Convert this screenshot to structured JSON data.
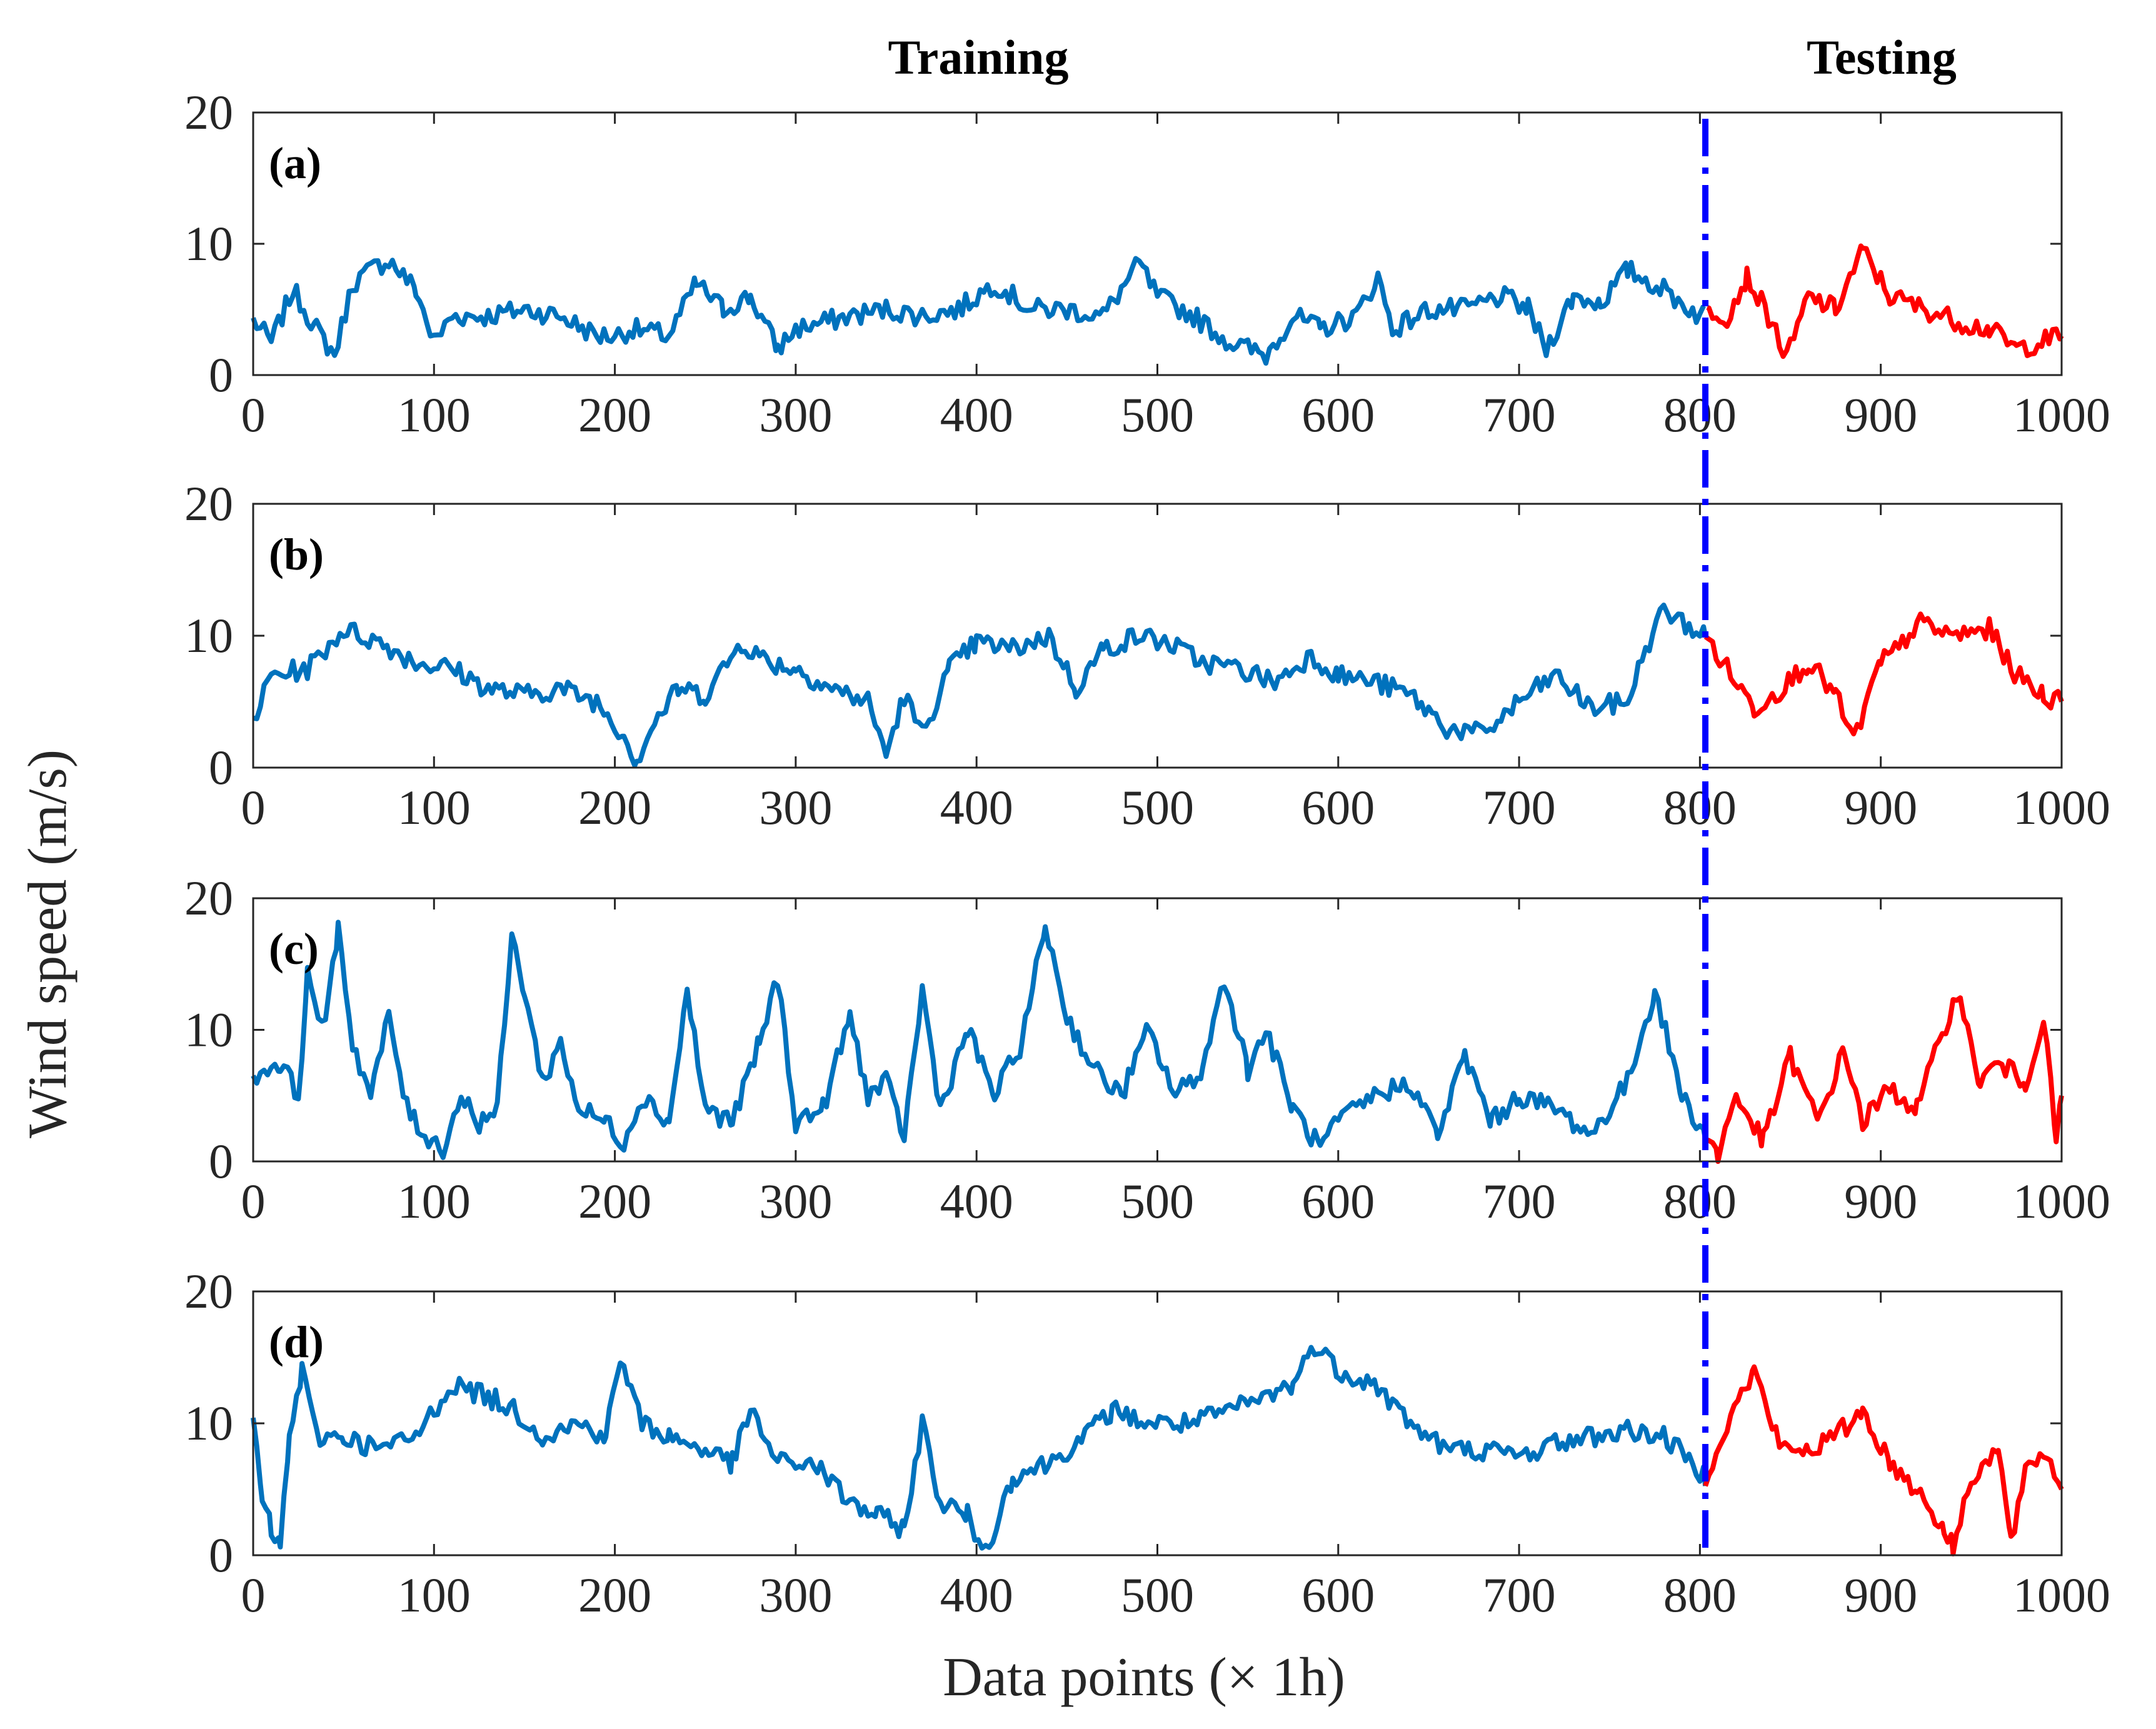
{
  "chart_data": {
    "type": "line",
    "section_labels": {
      "training": "Training",
      "testing": "Testing"
    },
    "xlabel": "Data points (× 1h)",
    "ylabel": "Wind speed (m/s)",
    "xlim": [
      0,
      1000
    ],
    "ylim": [
      0,
      20
    ],
    "xticks": [
      "0",
      "100",
      "200",
      "300",
      "400",
      "500",
      "600",
      "700",
      "800",
      "900",
      "1000"
    ],
    "yticks": [
      "0",
      "10",
      "20"
    ],
    "split_x": 803,
    "colors": {
      "training": "#0072BD",
      "testing": "#FF0000",
      "split": "#0000FF",
      "axis": "#262626"
    },
    "panels": [
      {
        "label": "(a)",
        "knots": [
          [
            0,
            4.2
          ],
          [
            10,
            2.5
          ],
          [
            22,
            6.5
          ],
          [
            35,
            3.5
          ],
          [
            45,
            1.5
          ],
          [
            55,
            7
          ],
          [
            65,
            8
          ],
          [
            75,
            8.8
          ],
          [
            90,
            6.5
          ],
          [
            100,
            2.5
          ],
          [
            110,
            4.5
          ],
          [
            130,
            4.5
          ],
          [
            150,
            5
          ],
          [
            170,
            4.5
          ],
          [
            190,
            3
          ],
          [
            200,
            3
          ],
          [
            210,
            3.5
          ],
          [
            230,
            3
          ],
          [
            245,
            7
          ],
          [
            260,
            5
          ],
          [
            275,
            6
          ],
          [
            290,
            2
          ],
          [
            300,
            3.5
          ],
          [
            330,
            4.5
          ],
          [
            350,
            5
          ],
          [
            370,
            4.5
          ],
          [
            390,
            5
          ],
          [
            410,
            7
          ],
          [
            430,
            5
          ],
          [
            450,
            5
          ],
          [
            470,
            4.5
          ],
          [
            490,
            8.5
          ],
          [
            500,
            6
          ],
          [
            520,
            4.5
          ],
          [
            540,
            2.5
          ],
          [
            560,
            1.5
          ],
          [
            575,
            4.5
          ],
          [
            590,
            3.5
          ],
          [
            610,
            4.5
          ],
          [
            622,
            7.5
          ],
          [
            630,
            3.5
          ],
          [
            650,
            5
          ],
          [
            670,
            5
          ],
          [
            690,
            6
          ],
          [
            705,
            5
          ],
          [
            715,
            2
          ],
          [
            730,
            6
          ],
          [
            745,
            5.5
          ],
          [
            760,
            8
          ],
          [
            780,
            6.5
          ],
          [
            800,
            4.5
          ],
          [
            805,
            5
          ],
          [
            815,
            4.5
          ],
          [
            826,
            7.5
          ],
          [
            840,
            4
          ],
          [
            848,
            1.2
          ],
          [
            860,
            6
          ],
          [
            875,
            5
          ],
          [
            890,
            9.5
          ],
          [
            905,
            6
          ],
          [
            925,
            5
          ],
          [
            945,
            4
          ],
          [
            960,
            3.5
          ],
          [
            975,
            2
          ],
          [
            1000,
            3
          ]
        ]
      },
      {
        "label": "(b)",
        "knots": [
          [
            0,
            3.5
          ],
          [
            10,
            7
          ],
          [
            30,
            7.5
          ],
          [
            50,
            10.5
          ],
          [
            70,
            9.5
          ],
          [
            90,
            8
          ],
          [
            110,
            7.5
          ],
          [
            130,
            6
          ],
          [
            150,
            5.5
          ],
          [
            170,
            6
          ],
          [
            190,
            5
          ],
          [
            205,
            2.5
          ],
          [
            212,
            0.5
          ],
          [
            220,
            3
          ],
          [
            235,
            6
          ],
          [
            250,
            5.5
          ],
          [
            270,
            9.5
          ],
          [
            285,
            8
          ],
          [
            300,
            7.5
          ],
          [
            320,
            6
          ],
          [
            340,
            5
          ],
          [
            350,
            1
          ],
          [
            360,
            5.5
          ],
          [
            370,
            2.5
          ],
          [
            385,
            7.5
          ],
          [
            400,
            9.5
          ],
          [
            420,
            9
          ],
          [
            440,
            10
          ],
          [
            455,
            6
          ],
          [
            470,
            9
          ],
          [
            490,
            10
          ],
          [
            505,
            9.5
          ],
          [
            525,
            8
          ],
          [
            545,
            7.5
          ],
          [
            565,
            6.5
          ],
          [
            585,
            8.5
          ],
          [
            600,
            7
          ],
          [
            620,
            6.5
          ],
          [
            640,
            5.5
          ],
          [
            660,
            3
          ],
          [
            680,
            2.5
          ],
          [
            700,
            5
          ],
          [
            720,
            7
          ],
          [
            740,
            4.5
          ],
          [
            760,
            5
          ],
          [
            770,
            9
          ],
          [
            780,
            12
          ],
          [
            790,
            11
          ],
          [
            803,
            10
          ],
          [
            815,
            7.5
          ],
          [
            830,
            4.5
          ],
          [
            845,
            6
          ],
          [
            860,
            8
          ],
          [
            875,
            5.5
          ],
          [
            885,
            2
          ],
          [
            900,
            8
          ],
          [
            910,
            9
          ],
          [
            920,
            11
          ],
          [
            940,
            10
          ],
          [
            960,
            10.5
          ],
          [
            975,
            7
          ],
          [
            990,
            5.5
          ],
          [
            1000,
            5
          ]
        ]
      },
      {
        "label": "(c)",
        "knots": [
          [
            0,
            6.5
          ],
          [
            15,
            7.5
          ],
          [
            25,
            5
          ],
          [
            30,
            14
          ],
          [
            40,
            10
          ],
          [
            47,
            18
          ],
          [
            55,
            9
          ],
          [
            65,
            5
          ],
          [
            75,
            11
          ],
          [
            85,
            4
          ],
          [
            95,
            2
          ],
          [
            105,
            1
          ],
          [
            115,
            5
          ],
          [
            125,
            3
          ],
          [
            135,
            4
          ],
          [
            143,
            17
          ],
          [
            150,
            13
          ],
          [
            160,
            6
          ],
          [
            170,
            9
          ],
          [
            180,
            4
          ],
          [
            195,
            3
          ],
          [
            205,
            1.5
          ],
          [
            215,
            5
          ],
          [
            230,
            3
          ],
          [
            240,
            13
          ],
          [
            250,
            4
          ],
          [
            265,
            3
          ],
          [
            280,
            9
          ],
          [
            290,
            14
          ],
          [
            300,
            3
          ],
          [
            315,
            4
          ],
          [
            330,
            11
          ],
          [
            340,
            5
          ],
          [
            350,
            6
          ],
          [
            360,
            2
          ],
          [
            370,
            13
          ],
          [
            380,
            4
          ],
          [
            395,
            10
          ],
          [
            410,
            5
          ],
          [
            425,
            9
          ],
          [
            438,
            18
          ],
          [
            450,
            11
          ],
          [
            465,
            7
          ],
          [
            480,
            5
          ],
          [
            495,
            10
          ],
          [
            510,
            5
          ],
          [
            525,
            7
          ],
          [
            537,
            14
          ],
          [
            550,
            7
          ],
          [
            560,
            10
          ],
          [
            575,
            4
          ],
          [
            590,
            1
          ],
          [
            600,
            3
          ],
          [
            620,
            5
          ],
          [
            640,
            6
          ],
          [
            655,
            2
          ],
          [
            670,
            8
          ],
          [
            685,
            3
          ],
          [
            700,
            5
          ],
          [
            720,
            4
          ],
          [
            740,
            2
          ],
          [
            760,
            6
          ],
          [
            775,
            13
          ],
          [
            790,
            5
          ],
          [
            803,
            2
          ],
          [
            810,
            0.5
          ],
          [
            820,
            5
          ],
          [
            835,
            1.5
          ],
          [
            850,
            8
          ],
          [
            865,
            3
          ],
          [
            880,
            8.5
          ],
          [
            890,
            3
          ],
          [
            905,
            5.5
          ],
          [
            920,
            4
          ],
          [
            930,
            8
          ],
          [
            942,
            13
          ],
          [
            955,
            6
          ],
          [
            965,
            7.5
          ],
          [
            980,
            6
          ],
          [
            990,
            11
          ],
          [
            997,
            1.5
          ],
          [
            1000,
            5
          ]
        ]
      },
      {
        "label": "(d)",
        "knots": [
          [
            0,
            10.5
          ],
          [
            5,
            4
          ],
          [
            10,
            2
          ],
          [
            15,
            0.5
          ],
          [
            20,
            9
          ],
          [
            27,
            14
          ],
          [
            35,
            9
          ],
          [
            50,
            9
          ],
          [
            70,
            8
          ],
          [
            90,
            9
          ],
          [
            110,
            13
          ],
          [
            130,
            12
          ],
          [
            145,
            11
          ],
          [
            160,
            9
          ],
          [
            180,
            10
          ],
          [
            195,
            9
          ],
          [
            203,
            15
          ],
          [
            215,
            10
          ],
          [
            230,
            9
          ],
          [
            250,
            8
          ],
          [
            265,
            7
          ],
          [
            275,
            11
          ],
          [
            290,
            7
          ],
          [
            310,
            7
          ],
          [
            330,
            4
          ],
          [
            345,
            3
          ],
          [
            360,
            2
          ],
          [
            370,
            10
          ],
          [
            380,
            4
          ],
          [
            395,
            3
          ],
          [
            405,
            0.2
          ],
          [
            420,
            6
          ],
          [
            440,
            7
          ],
          [
            460,
            9
          ],
          [
            475,
            11
          ],
          [
            495,
            10
          ],
          [
            520,
            10
          ],
          [
            540,
            11
          ],
          [
            560,
            12
          ],
          [
            575,
            13
          ],
          [
            587,
            16
          ],
          [
            600,
            14
          ],
          [
            620,
            13
          ],
          [
            640,
            10
          ],
          [
            660,
            8
          ],
          [
            680,
            8
          ],
          [
            700,
            7.5
          ],
          [
            720,
            8.5
          ],
          [
            740,
            9
          ],
          [
            760,
            9.5
          ],
          [
            780,
            9
          ],
          [
            803,
            6
          ],
          [
            815,
            10
          ],
          [
            830,
            14
          ],
          [
            845,
            8
          ],
          [
            860,
            8
          ],
          [
            875,
            9
          ],
          [
            890,
            11
          ],
          [
            905,
            7
          ],
          [
            920,
            5
          ],
          [
            935,
            2
          ],
          [
            940,
            0.5
          ],
          [
            950,
            6
          ],
          [
            965,
            8
          ],
          [
            972,
            1
          ],
          [
            980,
            6
          ],
          [
            990,
            8
          ],
          [
            1000,
            5
          ]
        ]
      }
    ]
  }
}
